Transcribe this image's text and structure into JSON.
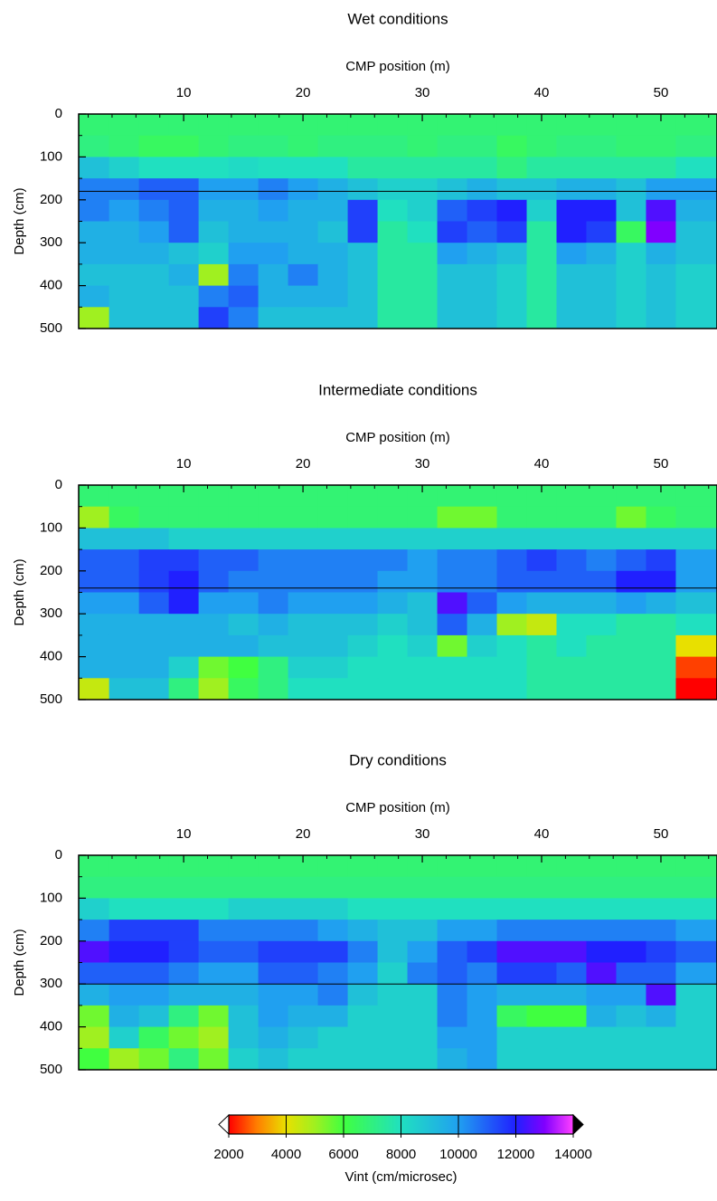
{
  "chart_data": [
    {
      "type": "heatmap",
      "title": "Wet conditions",
      "xlabel": "CMP position (m)",
      "ylabel": "Depth (cm)",
      "xlim": [
        1.2,
        54.7
      ],
      "ylim": [
        0,
        500
      ],
      "y_inverted": true,
      "xticks": [
        10,
        20,
        30,
        40,
        50
      ],
      "xminorticks": [
        2,
        4,
        6,
        8,
        12,
        14,
        16,
        18,
        22,
        24,
        26,
        28,
        32,
        34,
        36,
        38,
        42,
        44,
        46,
        48,
        52,
        54
      ],
      "yticks": [
        0,
        100,
        200,
        300,
        400,
        500
      ],
      "yminorticks": [
        50,
        150,
        250,
        350,
        450
      ],
      "x": [
        2.5,
        5,
        7.5,
        10,
        12.5,
        15,
        17.5,
        20,
        22.5,
        25,
        27.5,
        30,
        32.5,
        35,
        37.5,
        40,
        42.5,
        45,
        47.5,
        50,
        52.5
      ],
      "y": [
        25,
        75,
        125,
        175,
        225,
        275,
        325,
        375,
        425,
        475
      ],
      "z": [
        [
          6800,
          6800,
          6800,
          6800,
          6800,
          6800,
          6800,
          6800,
          6800,
          6800,
          6800,
          6800,
          6800,
          6800,
          6800,
          6800,
          6800,
          6800,
          6800,
          6800,
          6800
        ],
        [
          7000,
          6800,
          6500,
          6500,
          6800,
          7000,
          7000,
          6800,
          7000,
          7000,
          7000,
          6800,
          7000,
          7000,
          6500,
          6800,
          7000,
          7000,
          6800,
          6800,
          7000
        ],
        [
          9000,
          8500,
          8000,
          8000,
          8000,
          8200,
          8000,
          8000,
          8000,
          7500,
          7500,
          7500,
          7500,
          7500,
          7000,
          7500,
          7500,
          7500,
          7500,
          7500,
          8000
        ],
        [
          10500,
          10500,
          11000,
          11000,
          10000,
          10000,
          10500,
          10000,
          9500,
          9000,
          8500,
          8500,
          9000,
          9500,
          9000,
          9000,
          9500,
          9500,
          9000,
          10000,
          10000
        ],
        [
          10500,
          10000,
          10500,
          11000,
          9500,
          9500,
          10000,
          9500,
          9500,
          11500,
          8000,
          8500,
          11000,
          11500,
          12000,
          8500,
          12000,
          12000,
          9000,
          12500,
          9500
        ],
        [
          9500,
          9500,
          10000,
          11000,
          9000,
          9500,
          9500,
          9500,
          9000,
          11500,
          7500,
          8000,
          11500,
          11000,
          11500,
          7500,
          12000,
          11500,
          6500,
          13000,
          9000
        ],
        [
          9500,
          9500,
          9500,
          9000,
          8500,
          10000,
          10000,
          9500,
          9500,
          9000,
          7500,
          7500,
          10000,
          9500,
          9000,
          7500,
          10000,
          9500,
          8500,
          9500,
          9000
        ],
        [
          9000,
          9000,
          9000,
          9500,
          5000,
          10500,
          9500,
          10500,
          9500,
          9000,
          7500,
          7500,
          9000,
          9000,
          8500,
          7500,
          9000,
          9000,
          8500,
          9000,
          8500
        ],
        [
          9500,
          9000,
          9000,
          9000,
          10500,
          11000,
          9500,
          9500,
          9500,
          9000,
          7500,
          7500,
          9000,
          9000,
          8500,
          7500,
          9000,
          9000,
          8500,
          9000,
          8500
        ],
        [
          5000,
          9000,
          9000,
          9000,
          11500,
          10500,
          9000,
          9000,
          9000,
          9000,
          7500,
          7500,
          9000,
          9000,
          8500,
          7500,
          9000,
          9000,
          8500,
          9000,
          8500
        ]
      ],
      "hline": 180
    },
    {
      "type": "heatmap",
      "title": "Intermediate conditions",
      "xlabel": "CMP position (m)",
      "ylabel": "Depth (cm)",
      "xlim": [
        1.2,
        54.7
      ],
      "ylim": [
        0,
        500
      ],
      "y_inverted": true,
      "xticks": [
        10,
        20,
        30,
        40,
        50
      ],
      "xminorticks": [
        2,
        4,
        6,
        8,
        12,
        14,
        16,
        18,
        22,
        24,
        26,
        28,
        32,
        34,
        36,
        38,
        42,
        44,
        46,
        48,
        52,
        54
      ],
      "yticks": [
        0,
        100,
        200,
        300,
        400,
        500
      ],
      "yminorticks": [
        50,
        150,
        250,
        350,
        450
      ],
      "x": [
        2.5,
        5,
        7.5,
        10,
        12.5,
        15,
        17.5,
        20,
        22.5,
        25,
        27.5,
        30,
        32.5,
        35,
        37.5,
        40,
        42.5,
        45,
        47.5,
        50,
        52.5
      ],
      "y": [
        25,
        75,
        125,
        175,
        225,
        275,
        325,
        375,
        425,
        475
      ],
      "z": [
        [
          6800,
          6800,
          6800,
          6800,
          6800,
          6800,
          6800,
          6800,
          6800,
          6800,
          6800,
          6800,
          6800,
          6800,
          6800,
          6800,
          6800,
          6800,
          6800,
          6800,
          6800
        ],
        [
          5000,
          6500,
          6800,
          6800,
          6800,
          6800,
          6800,
          6800,
          6800,
          6800,
          6800,
          6800,
          5500,
          5500,
          6800,
          6800,
          6800,
          6800,
          5500,
          6500,
          6800
        ],
        [
          9000,
          9000,
          9000,
          8500,
          8500,
          8500,
          8500,
          8500,
          8500,
          8500,
          8500,
          8500,
          8500,
          8500,
          8500,
          8500,
          8500,
          8500,
          8500,
          8500,
          8500
        ],
        [
          11000,
          11000,
          11500,
          11500,
          11000,
          11000,
          10500,
          10500,
          10500,
          10500,
          10500,
          10000,
          10500,
          10500,
          11000,
          11500,
          11000,
          10500,
          11000,
          11500,
          10000
        ],
        [
          11000,
          11000,
          11500,
          12000,
          11000,
          10500,
          10500,
          10500,
          10500,
          10500,
          10000,
          10000,
          10500,
          10500,
          11000,
          11000,
          11000,
          11000,
          12000,
          12000,
          10000
        ],
        [
          10000,
          10000,
          11000,
          12000,
          10000,
          10000,
          10500,
          10000,
          10000,
          10000,
          9500,
          9000,
          12500,
          11000,
          10000,
          9500,
          9500,
          9500,
          10000,
          9500,
          9000
        ],
        [
          9500,
          9500,
          9500,
          9500,
          9500,
          9000,
          9500,
          9000,
          9000,
          9000,
          8500,
          9000,
          11000,
          9500,
          5000,
          4500,
          8000,
          8000,
          7500,
          7500,
          8000
        ],
        [
          9500,
          9500,
          9500,
          9500,
          9500,
          9500,
          9000,
          9000,
          9000,
          8500,
          8000,
          8500,
          5500,
          8500,
          8000,
          7500,
          8000,
          7500,
          7500,
          7500,
          4000
        ],
        [
          9500,
          9500,
          9500,
          8500,
          5500,
          6000,
          7000,
          8500,
          8500,
          8000,
          8000,
          8000,
          8000,
          8000,
          8000,
          7500,
          7500,
          7500,
          7500,
          7500,
          2500
        ],
        [
          4500,
          9000,
          9000,
          7000,
          5000,
          6500,
          7000,
          8000,
          8000,
          8000,
          8000,
          8000,
          8000,
          8000,
          8000,
          7500,
          7500,
          7500,
          7500,
          7500,
          2000
        ]
      ],
      "hline": 240
    },
    {
      "type": "heatmap",
      "title": "Dry conditions",
      "xlabel": "CMP position (m)",
      "ylabel": "Depth (cm)",
      "xlim": [
        1.2,
        54.7
      ],
      "ylim": [
        0,
        500
      ],
      "y_inverted": true,
      "xticks": [
        10,
        20,
        30,
        40,
        50
      ],
      "xminorticks": [
        2,
        4,
        6,
        8,
        12,
        14,
        16,
        18,
        22,
        24,
        26,
        28,
        32,
        34,
        36,
        38,
        42,
        44,
        46,
        48,
        52,
        54
      ],
      "yticks": [
        0,
        100,
        200,
        300,
        400,
        500
      ],
      "yminorticks": [
        50,
        150,
        250,
        350,
        450
      ],
      "x": [
        2.5,
        5,
        7.5,
        10,
        12.5,
        15,
        17.5,
        20,
        22.5,
        25,
        27.5,
        30,
        32.5,
        35,
        37.5,
        40,
        42.5,
        45,
        47.5,
        50,
        52.5
      ],
      "y": [
        25,
        75,
        125,
        175,
        225,
        275,
        325,
        375,
        425,
        475
      ],
      "z": [
        [
          6800,
          6800,
          6800,
          6800,
          6800,
          6800,
          6800,
          6800,
          6800,
          6800,
          6800,
          6800,
          6800,
          6800,
          6800,
          6800,
          6800,
          6800,
          6800,
          6800,
          6800
        ],
        [
          7000,
          7000,
          7000,
          7000,
          7000,
          7000,
          7000,
          7000,
          7000,
          7000,
          7000,
          7000,
          7000,
          7000,
          7000,
          7000,
          7000,
          7000,
          7000,
          7000,
          7000
        ],
        [
          8500,
          8000,
          8000,
          8000,
          8000,
          8500,
          8500,
          8500,
          8500,
          8000,
          8000,
          8000,
          8000,
          8000,
          8000,
          8000,
          8000,
          8000,
          8000,
          8000,
          8000
        ],
        [
          10500,
          11500,
          11500,
          11500,
          10500,
          10500,
          10500,
          10500,
          10000,
          9500,
          9000,
          9000,
          10000,
          10000,
          10500,
          10500,
          10500,
          10500,
          10500,
          10500,
          10000
        ],
        [
          12500,
          12000,
          12000,
          11500,
          11000,
          11000,
          11500,
          11500,
          11500,
          10500,
          9000,
          10000,
          11000,
          11500,
          12500,
          12500,
          12500,
          12000,
          12000,
          11500,
          11000
        ],
        [
          11000,
          11000,
          11000,
          10500,
          10000,
          10000,
          11000,
          11000,
          10500,
          10000,
          8500,
          10500,
          11000,
          10500,
          11500,
          11500,
          11000,
          12500,
          11000,
          11000,
          10000
        ],
        [
          9500,
          10000,
          10000,
          9500,
          9500,
          9500,
          10000,
          10000,
          10500,
          9000,
          8500,
          8500,
          10500,
          10000,
          9500,
          9500,
          9500,
          10000,
          10000,
          12500,
          8500
        ],
        [
          5500,
          9500,
          9000,
          7000,
          5500,
          9000,
          10000,
          9500,
          9500,
          8500,
          8500,
          8500,
          10500,
          10000,
          6500,
          6000,
          6000,
          9500,
          9000,
          9500,
          8500
        ],
        [
          5000,
          8500,
          6500,
          5500,
          5000,
          9000,
          9500,
          9000,
          8500,
          8500,
          8500,
          8500,
          10000,
          10000,
          8500,
          8500,
          8500,
          8500,
          8500,
          8500,
          8500
        ],
        [
          6000,
          5000,
          5500,
          7000,
          5500,
          8500,
          9000,
          8500,
          8500,
          8500,
          8500,
          8500,
          9500,
          10000,
          8500,
          8500,
          8500,
          8500,
          8500,
          8500,
          8500
        ]
      ],
      "hline": 300
    },
    {
      "type": "colorbar",
      "label": "Vint (cm/microsec)",
      "clim": [
        2000,
        14000
      ],
      "ticks": [
        2000,
        4000,
        6000,
        8000,
        10000,
        12000,
        14000
      ],
      "stops": [
        {
          "value": 2000,
          "color": "#ff0000"
        },
        {
          "value": 3000,
          "color": "#ff8000"
        },
        {
          "value": 4000,
          "color": "#e8e000"
        },
        {
          "value": 5000,
          "color": "#a0f020"
        },
        {
          "value": 6000,
          "color": "#40ff40"
        },
        {
          "value": 7000,
          "color": "#30f080"
        },
        {
          "value": 8000,
          "color": "#20e0c0"
        },
        {
          "value": 10000,
          "color": "#20a0f0"
        },
        {
          "value": 12000,
          "color": "#2020ff"
        },
        {
          "value": 13000,
          "color": "#8000ff"
        },
        {
          "value": 14000,
          "color": "#ff40ff"
        }
      ],
      "under_color": "#ffffff",
      "over_color": "#000000"
    }
  ]
}
